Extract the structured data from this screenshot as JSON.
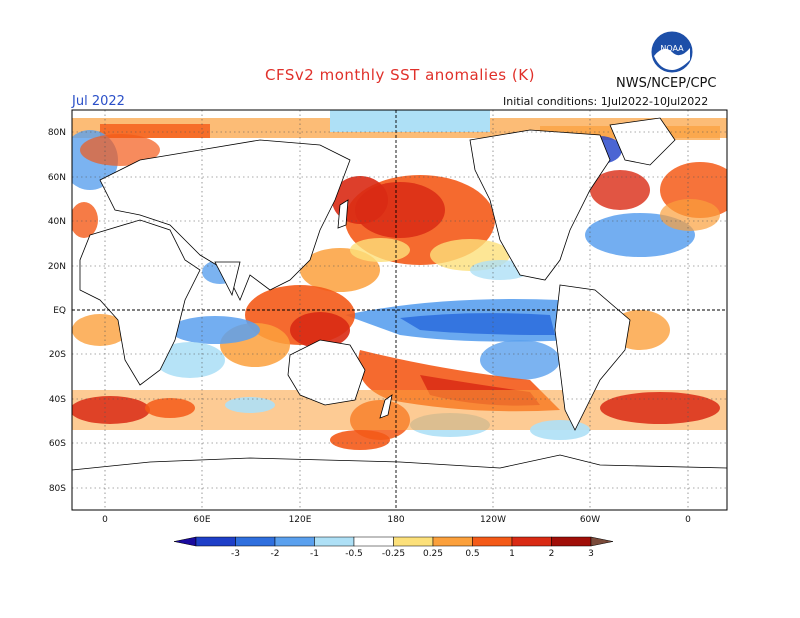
{
  "header": {
    "title": "CFSv2 monthly SST anomalies (K)",
    "month": "Jul 2022",
    "agency": "NWS/NCEP/CPC",
    "initial_conditions": "Initial conditions: 1Jul2022-10Jul2022",
    "logo_text": "NOAA"
  },
  "map": {
    "lat_labels": [
      "80N",
      "60N",
      "40N",
      "20N",
      "EQ",
      "20S",
      "40S",
      "60S",
      "80S"
    ],
    "lon_labels": [
      "0",
      "60E",
      "120E",
      "180",
      "120W",
      "60W",
      "0"
    ],
    "ocean_background": "#ffffff",
    "land_color": "#ffffff"
  },
  "colorbar": {
    "labels": [
      "-3",
      "-2",
      "-1",
      "-0.5",
      "-0.25",
      "0.25",
      "0.5",
      "1",
      "2",
      "3"
    ],
    "colors": [
      "#1a0a9e",
      "#1e3fc8",
      "#2f6fde",
      "#5aa0ee",
      "#aee0f6",
      "#ffffff",
      "#fce07a",
      "#fba03c",
      "#f45a18",
      "#d92a14",
      "#a00e08",
      "#7a4a3a"
    ]
  }
}
